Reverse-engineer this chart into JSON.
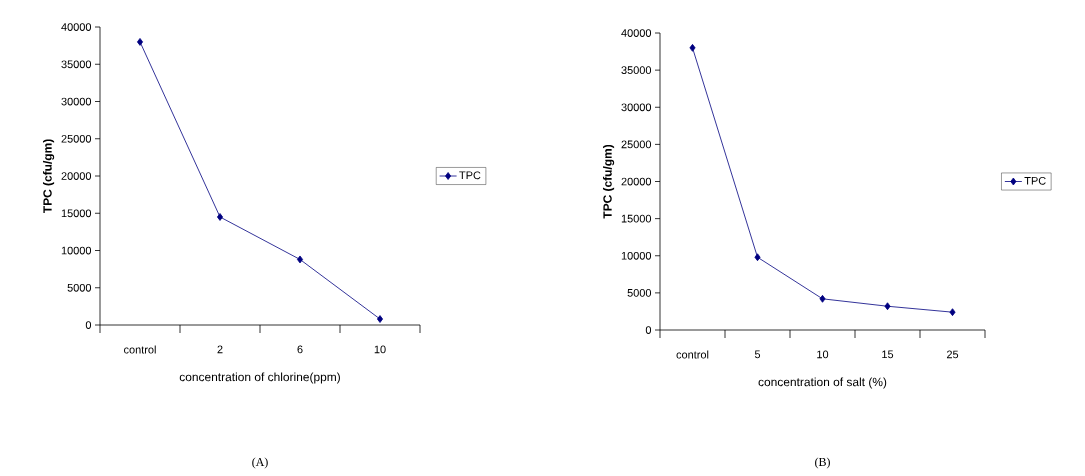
{
  "chart_data": [
    {
      "type": "line",
      "categories": [
        "control",
        "2",
        "6",
        "10"
      ],
      "xlabel": "concentration of chlorine(ppm)",
      "ylabel": "TPC (cfu/gm)",
      "series": [
        {
          "name": "TPC",
          "color": "#000080",
          "values": [
            38000,
            14500,
            8800,
            800
          ]
        }
      ],
      "ylim": [
        0,
        40000
      ],
      "yticks": [
        0,
        5000,
        10000,
        15000,
        20000,
        25000,
        30000,
        35000,
        40000
      ],
      "marker": "diamond",
      "legend": "right",
      "grid": false,
      "annotations": [
        "(A)"
      ]
    },
    {
      "type": "line",
      "categories": [
        "control",
        "5",
        "10",
        "15",
        "25"
      ],
      "xlabel": "concentration of salt (%)",
      "ylabel": "TPC (cfu/gm)",
      "series": [
        {
          "name": "TPC",
          "color": "#000080",
          "values": [
            38000,
            9800,
            4200,
            3200,
            2400
          ]
        }
      ],
      "ylim": [
        0,
        40000
      ],
      "yticks": [
        0,
        5000,
        10000,
        15000,
        20000,
        25000,
        30000,
        35000,
        40000
      ],
      "marker": "diamond",
      "legend": "right",
      "grid": false,
      "annotations": [
        "(B)"
      ]
    }
  ]
}
